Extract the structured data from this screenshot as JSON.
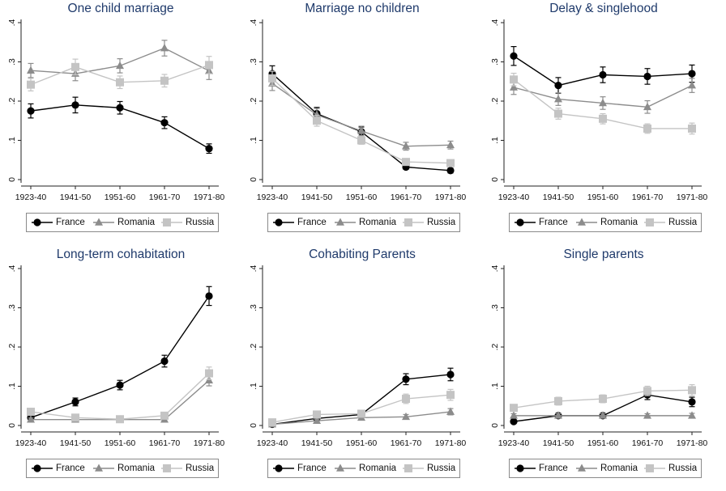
{
  "legend_labels": [
    "France",
    "Romania",
    "Russia"
  ],
  "chart_data": [
    {
      "type": "line",
      "title": "One child marriage",
      "categories": [
        "1923-40",
        "1941-50",
        "1951-60",
        "1961-70",
        "1971-80"
      ],
      "yticks": [
        ".4",
        ".3",
        ".2",
        ".1",
        "0"
      ],
      "ylim": [
        0,
        0.4
      ],
      "series": [
        {
          "name": "France",
          "color": "#000000",
          "marker": "circle",
          "values": [
            0.175,
            0.19,
            0.183,
            0.145,
            0.079
          ],
          "ci": [
            0.018,
            0.02,
            0.016,
            0.015,
            0.012
          ]
        },
        {
          "name": "Romania",
          "color": "#8c8c8c",
          "marker": "triangle",
          "values": [
            0.278,
            0.27,
            0.29,
            0.335,
            0.277
          ],
          "ci": [
            0.018,
            0.018,
            0.018,
            0.02,
            0.022
          ]
        },
        {
          "name": "Russia",
          "color": "#c4c4c4",
          "marker": "square",
          "values": [
            0.242,
            0.287,
            0.248,
            0.252,
            0.292
          ],
          "ci": [
            0.016,
            0.02,
            0.016,
            0.016,
            0.022
          ]
        }
      ]
    },
    {
      "type": "line",
      "title": "Marriage no children",
      "categories": [
        "1923-40",
        "1941-50",
        "1951-60",
        "1961-70",
        "1971-80"
      ],
      "yticks": [
        ".4",
        ".3",
        ".2",
        ".1",
        "0"
      ],
      "ylim": [
        0,
        0.4
      ],
      "series": [
        {
          "name": "France",
          "color": "#000000",
          "marker": "circle",
          "values": [
            0.27,
            0.168,
            0.122,
            0.032,
            0.023
          ],
          "ci": [
            0.02,
            0.016,
            0.012,
            0.006,
            0.006
          ]
        },
        {
          "name": "Romania",
          "color": "#8c8c8c",
          "marker": "triangle",
          "values": [
            0.245,
            0.165,
            0.124,
            0.085,
            0.088
          ],
          "ci": [
            0.018,
            0.016,
            0.012,
            0.01,
            0.01
          ]
        },
        {
          "name": "Russia",
          "color": "#c4c4c4",
          "marker": "square",
          "values": [
            0.258,
            0.15,
            0.1,
            0.045,
            0.042
          ],
          "ci": [
            0.018,
            0.014,
            0.01,
            0.006,
            0.006
          ]
        }
      ]
    },
    {
      "type": "line",
      "title": "Delay & singlehood",
      "categories": [
        "1923-40",
        "1941-50",
        "1951-60",
        "1961-70",
        "1971-80"
      ],
      "yticks": [
        ".4",
        ".3",
        ".2",
        ".1",
        "0"
      ],
      "ylim": [
        0,
        0.4
      ],
      "series": [
        {
          "name": "France",
          "color": "#000000",
          "marker": "circle",
          "values": [
            0.315,
            0.24,
            0.267,
            0.263,
            0.27
          ],
          "ci": [
            0.024,
            0.02,
            0.02,
            0.02,
            0.022
          ]
        },
        {
          "name": "Romania",
          "color": "#8c8c8c",
          "marker": "triangle",
          "values": [
            0.235,
            0.205,
            0.195,
            0.185,
            0.24
          ],
          "ci": [
            0.018,
            0.016,
            0.016,
            0.016,
            0.018
          ]
        },
        {
          "name": "Russia",
          "color": "#c4c4c4",
          "marker": "square",
          "values": [
            0.255,
            0.168,
            0.155,
            0.13,
            0.13
          ],
          "ci": [
            0.016,
            0.014,
            0.013,
            0.012,
            0.014
          ]
        }
      ]
    },
    {
      "type": "line",
      "title": "Long-term cohabitation",
      "categories": [
        "1923-40",
        "1941-50",
        "1951-60",
        "1961-70",
        "1971-80"
      ],
      "yticks": [
        ".4",
        ".3",
        ".2",
        ".1",
        "0"
      ],
      "ylim": [
        0,
        0.4
      ],
      "series": [
        {
          "name": "France",
          "color": "#000000",
          "marker": "circle",
          "values": [
            0.02,
            0.06,
            0.103,
            0.164,
            0.33
          ],
          "ci": [
            0.006,
            0.01,
            0.012,
            0.015,
            0.024
          ]
        },
        {
          "name": "Romania",
          "color": "#8c8c8c",
          "marker": "triangle",
          "values": [
            0.015,
            0.015,
            0.015,
            0.015,
            0.115
          ],
          "ci": [
            0.004,
            0.004,
            0.004,
            0.004,
            0.014
          ]
        },
        {
          "name": "Russia",
          "color": "#c4c4c4",
          "marker": "square",
          "values": [
            0.035,
            0.02,
            0.016,
            0.025,
            0.133
          ],
          "ci": [
            0.008,
            0.006,
            0.005,
            0.007,
            0.016
          ]
        }
      ]
    },
    {
      "type": "line",
      "title": "Cohabiting Parents",
      "categories": [
        "1923-40",
        "1941-50",
        "1951-60",
        "1961-70",
        "1971-80"
      ],
      "yticks": [
        ".4",
        ".3",
        ".2",
        ".1",
        "0"
      ],
      "ylim": [
        0,
        0.4
      ],
      "series": [
        {
          "name": "France",
          "color": "#000000",
          "marker": "circle",
          "values": [
            0.003,
            0.018,
            0.028,
            0.118,
            0.13
          ],
          "ci": [
            0.003,
            0.005,
            0.006,
            0.014,
            0.016
          ]
        },
        {
          "name": "Romania",
          "color": "#8c8c8c",
          "marker": "triangle",
          "values": [
            0.003,
            0.012,
            0.02,
            0.022,
            0.035
          ],
          "ci": [
            0.002,
            0.004,
            0.005,
            0.006,
            0.008
          ]
        },
        {
          "name": "Russia",
          "color": "#c4c4c4",
          "marker": "square",
          "values": [
            0.008,
            0.028,
            0.03,
            0.068,
            0.078
          ],
          "ci": [
            0.004,
            0.007,
            0.007,
            0.012,
            0.014
          ]
        }
      ]
    },
    {
      "type": "line",
      "title": "Single parents",
      "categories": [
        "1923-40",
        "1941-50",
        "1951-60",
        "1961-70",
        "1971-80"
      ],
      "yticks": [
        ".4",
        ".3",
        ".2",
        ".1",
        "0"
      ],
      "ylim": [
        0,
        0.4
      ],
      "series": [
        {
          "name": "France",
          "color": "#000000",
          "marker": "circle",
          "values": [
            0.01,
            0.025,
            0.025,
            0.078,
            0.06
          ],
          "ci": [
            0.004,
            0.006,
            0.006,
            0.012,
            0.012
          ]
        },
        {
          "name": "Romania",
          "color": "#8c8c8c",
          "marker": "triangle",
          "values": [
            0.025,
            0.025,
            0.025,
            0.025,
            0.025
          ],
          "ci": [
            0.005,
            0.005,
            0.005,
            0.005,
            0.006
          ]
        },
        {
          "name": "Russia",
          "color": "#c4c4c4",
          "marker": "square",
          "values": [
            0.045,
            0.062,
            0.068,
            0.088,
            0.09
          ],
          "ci": [
            0.008,
            0.01,
            0.01,
            0.012,
            0.014
          ]
        }
      ]
    }
  ]
}
